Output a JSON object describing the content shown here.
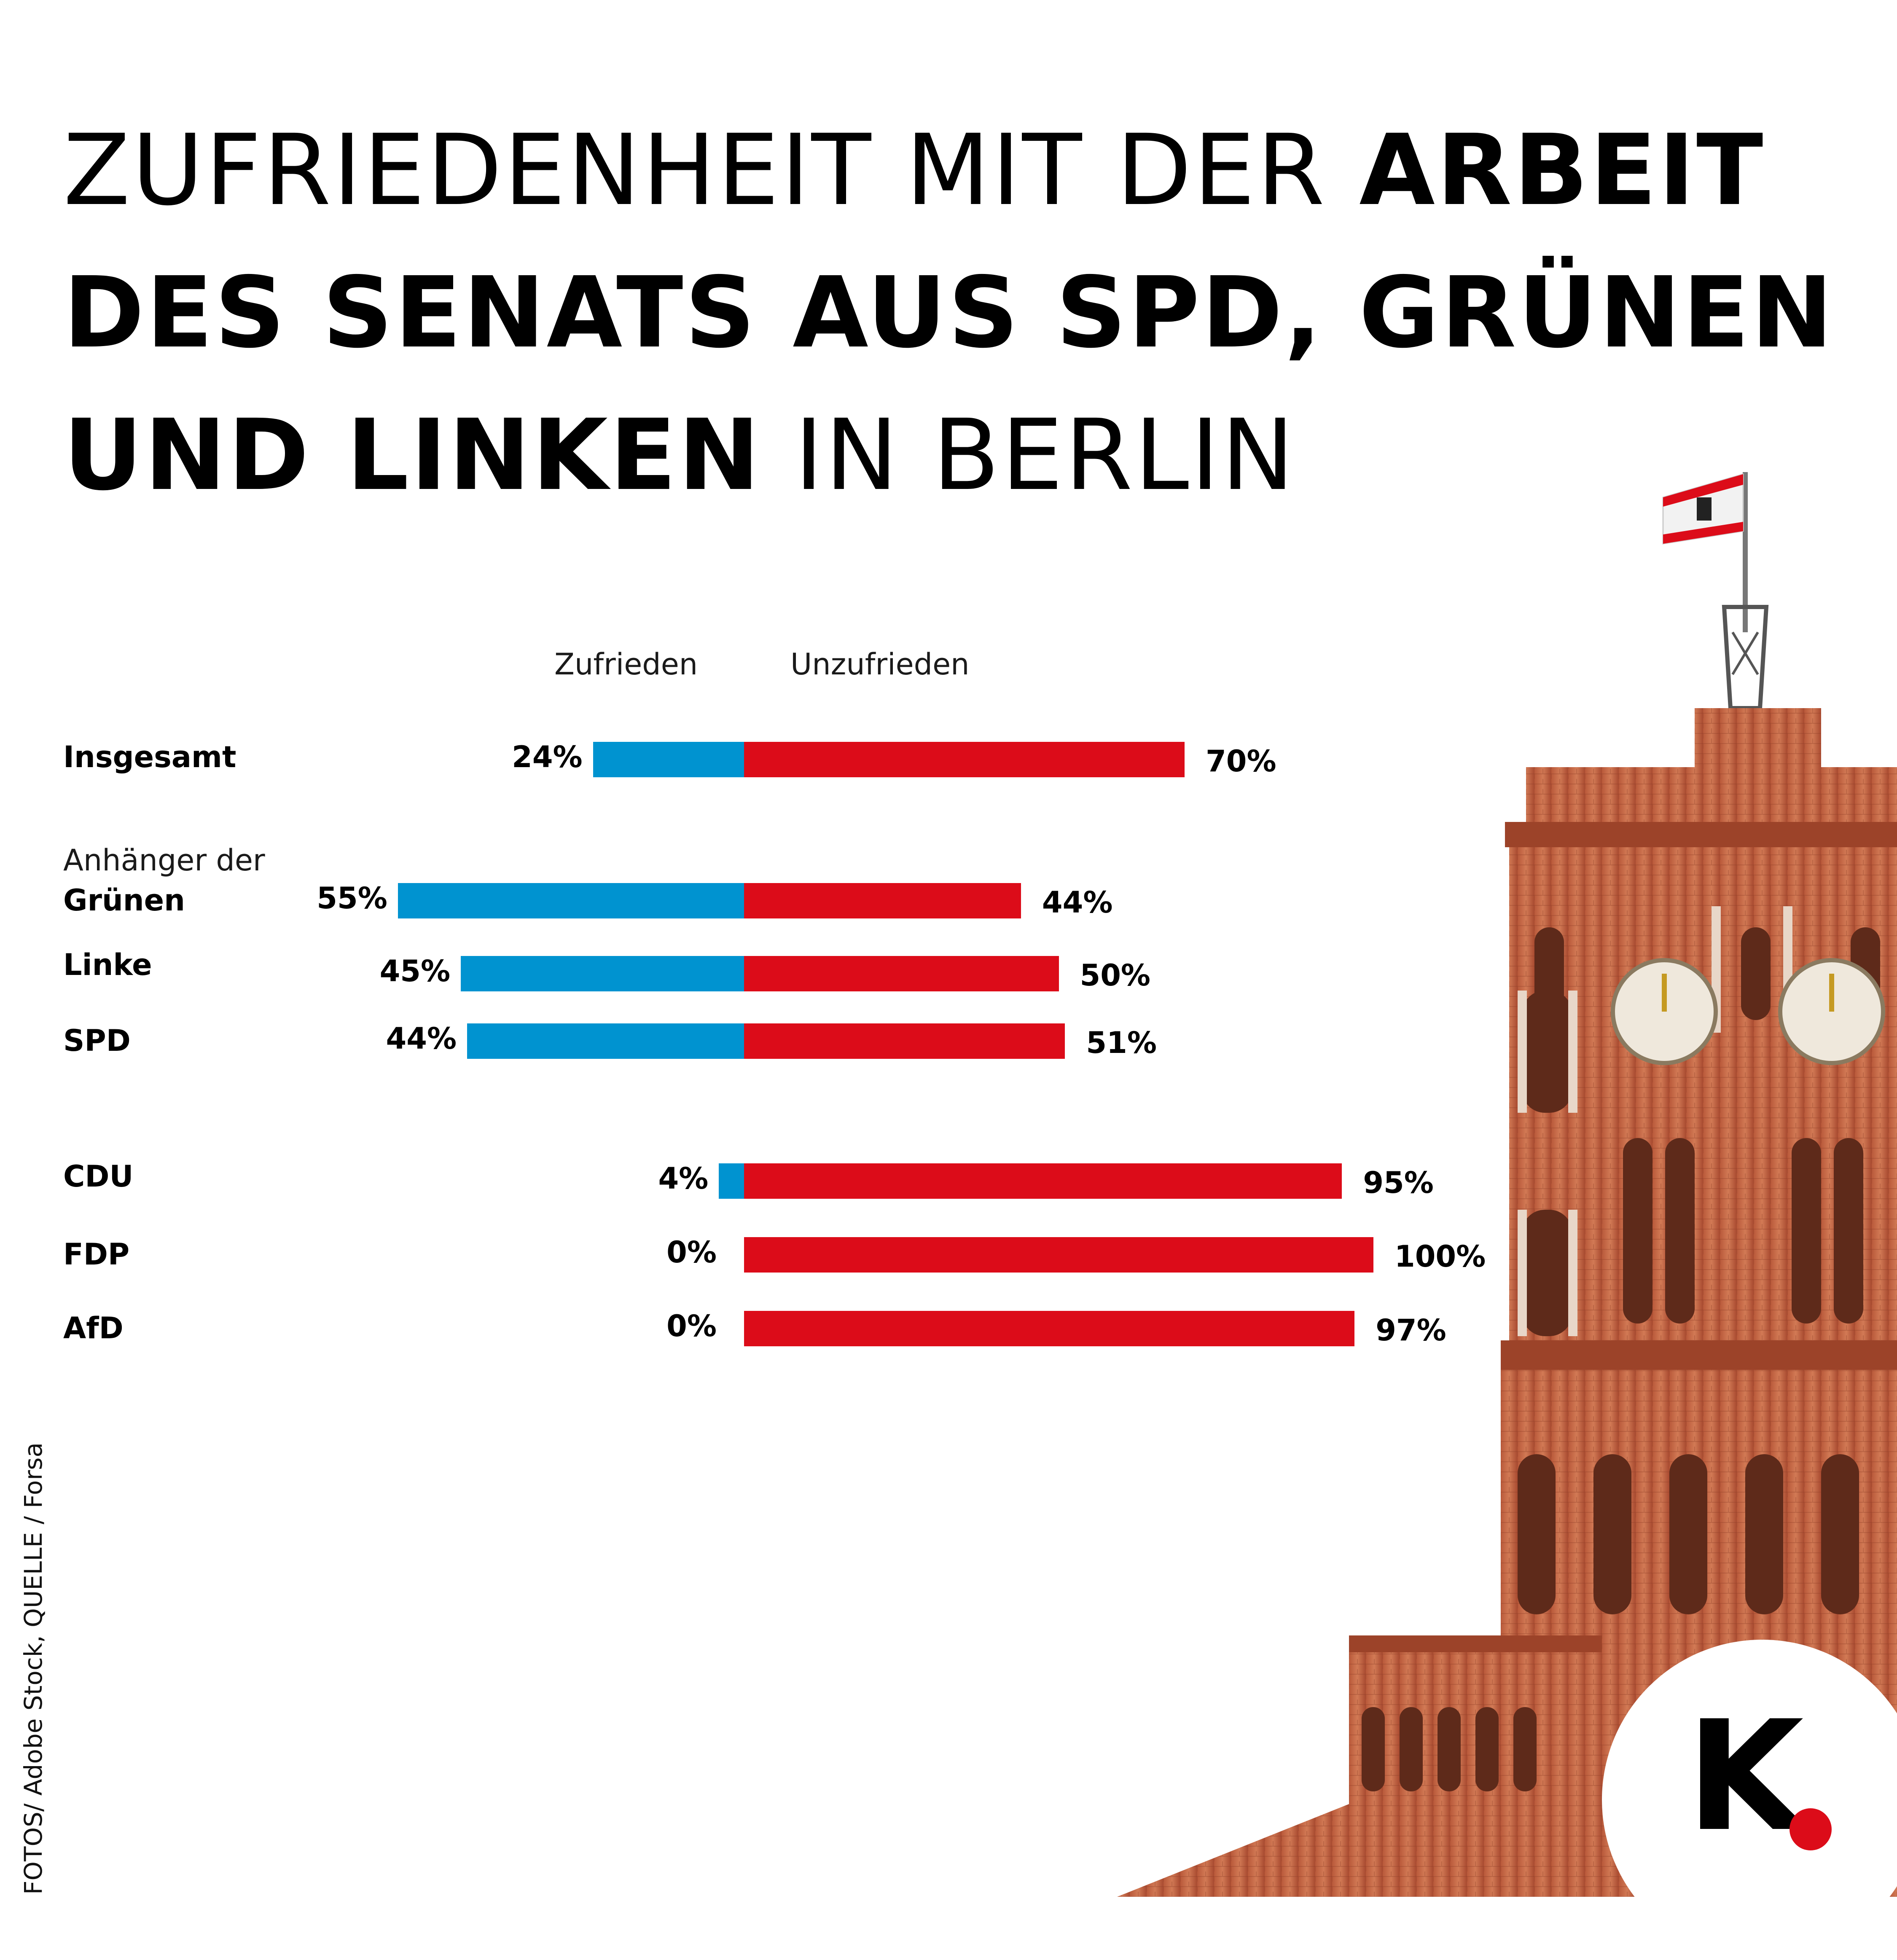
{
  "title": {
    "line1_light": "ZUFRIEDENHEIT MIT DER ",
    "line1_bold": "ARBEIT",
    "line2_bold": "DES SENATS  AUS SPD, GRÜNEN",
    "line3_bold": "UND LINKEN",
    "line3_light": " IN BERLIN"
  },
  "source": "FOTOS/ Adobe Stock, QUELLE / Forsa",
  "logo": {
    "letter": "K",
    "dot_color": "#dc0c19"
  },
  "chart_data": {
    "type": "bar",
    "orientation": "horizontal-diverging",
    "legend": [
      "Zufrieden",
      "Unzufrieden"
    ],
    "colors": {
      "Zufrieden": "#0093d0",
      "Unzufrieden": "#dc0c19"
    },
    "group_label": "Anhänger der",
    "categories": [
      "Insgesamt",
      "Grünen",
      "Linke",
      "SPD",
      "CDU",
      "FDP",
      "AfD"
    ],
    "series": [
      {
        "name": "Zufrieden",
        "values": [
          24,
          55,
          45,
          44,
          4,
          0,
          0
        ],
        "labels": [
          "24%",
          "55%",
          "45%",
          "44%",
          "4%",
          "0%",
          "0%"
        ]
      },
      {
        "name": "Unzufrieden",
        "values": [
          70,
          44,
          50,
          51,
          95,
          100,
          97
        ],
        "labels": [
          "70%",
          "44%",
          "50%",
          "51%",
          "95%",
          "100%",
          "97%"
        ]
      }
    ],
    "unit": "%"
  }
}
